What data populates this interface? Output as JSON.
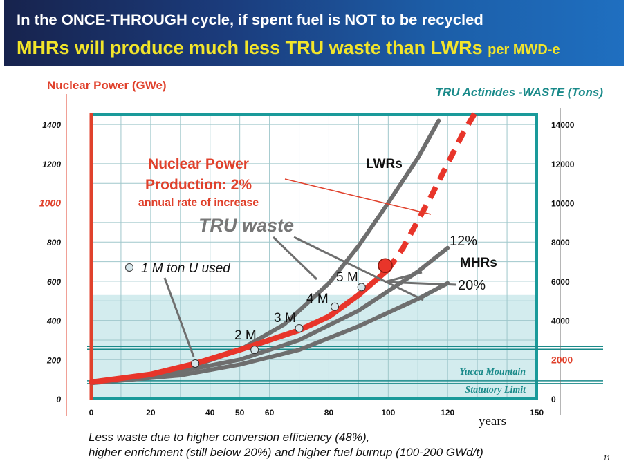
{
  "slide": {
    "title_line1": "In the ONCE-THROUGH cycle, if spent fuel is NOT to be recycled",
    "title_line2_main": "MHRs will produce much less TRU waste than LWRs",
    "title_line2_suffix": "per MWD-e",
    "footnote_line1": "Less waste due to higher conversion efficiency (48%),",
    "footnote_line2": "higher enrichment (still below 20%) and higher fuel burnup (100-200 GWd/t)",
    "page_number": "11"
  },
  "chart_data": {
    "type": "line",
    "left_axis": {
      "label": "Nuclear Power (GWe)",
      "range": [
        0,
        1450
      ],
      "ticks": [
        "0",
        "200",
        "400",
        "600",
        "800",
        "1000",
        "1200",
        "1400"
      ],
      "highlight_tick": "1000",
      "color": "#e0412c"
    },
    "right_axis": {
      "label": "TRU Actinides -WASTE (Tons)",
      "range": [
        0,
        14500
      ],
      "ticks": [
        "0",
        "2000",
        "4000",
        "6000",
        "8000",
        "10000",
        "12000",
        "14000"
      ],
      "highlight_tick": "2000",
      "color": "#1a8a8a"
    },
    "x_axis": {
      "label": "years",
      "range": [
        0,
        150
      ],
      "ticks": [
        "0",
        "20",
        "40",
        "50",
        "60",
        "80",
        "100",
        "120",
        "150"
      ]
    },
    "grid": true,
    "shaded_band": {
      "y_from": 0,
      "y_to": 5300
    },
    "yucca_limit_lines": [
      2600,
      850
    ],
    "annotations": {
      "power_label_1": "Nuclear Power",
      "power_label_2": "Production: 2%",
      "power_label_3": "annual rate of increase",
      "tru_waste": "TRU waste",
      "lwrs": "LWRs",
      "mhrs": "MHRs",
      "pct_12": "12%",
      "pct_20": "20%",
      "legend_marker": "1 M ton U used",
      "yucca_1": "Yucca Mountain",
      "yucca_2": "Statutory Limit",
      "m2": "2 M",
      "m3": "3 M",
      "m4": "4 M",
      "m5": "5 M"
    },
    "series": [
      {
        "name": "LWRs",
        "color": "#6e6e6e",
        "points": [
          [
            0,
            850
          ],
          [
            20,
            1200
          ],
          [
            35,
            1700
          ],
          [
            50,
            2500
          ],
          [
            65,
            3800
          ],
          [
            80,
            5900
          ],
          [
            90,
            7800
          ],
          [
            100,
            10000
          ],
          [
            110,
            12300
          ],
          [
            117,
            14200
          ]
        ]
      },
      {
        "name": "12%",
        "color": "#6e6e6e",
        "points": [
          [
            0,
            850
          ],
          [
            30,
            1400
          ],
          [
            50,
            2000
          ],
          [
            70,
            3000
          ],
          [
            90,
            4500
          ],
          [
            110,
            6500
          ],
          [
            120,
            7700
          ]
        ]
      },
      {
        "name": "20%",
        "color": "#6e6e6e",
        "points": [
          [
            0,
            800
          ],
          [
            30,
            1200
          ],
          [
            50,
            1750
          ],
          [
            70,
            2500
          ],
          [
            90,
            3700
          ],
          [
            110,
            5100
          ],
          [
            120,
            5900
          ]
        ]
      },
      {
        "name": "Nuclear Power Production: 2%",
        "color": "#e8352a",
        "solid_until_x": 100,
        "points": [
          [
            0,
            850
          ],
          [
            20,
            1250
          ],
          [
            35,
            1800
          ],
          [
            50,
            2500
          ],
          [
            70,
            3500
          ],
          [
            80,
            4200
          ],
          [
            90,
            5300
          ],
          [
            100,
            6600
          ],
          [
            105,
            7700
          ],
          [
            115,
            10500
          ],
          [
            125,
            13500
          ],
          [
            130,
            14800
          ]
        ]
      }
    ],
    "milestones": [
      {
        "label": "1 M",
        "x": 35,
        "y": 1800
      },
      {
        "label": "2 M",
        "x": 55,
        "y": 2500
      },
      {
        "label": "3 M",
        "x": 70,
        "y": 3600
      },
      {
        "label": "4 M",
        "x": 82,
        "y": 4700
      },
      {
        "label": "5 M",
        "x": 91,
        "y": 5700
      }
    ],
    "highlight_point": {
      "x": 99,
      "y": 6800,
      "color": "#e8352a"
    }
  }
}
